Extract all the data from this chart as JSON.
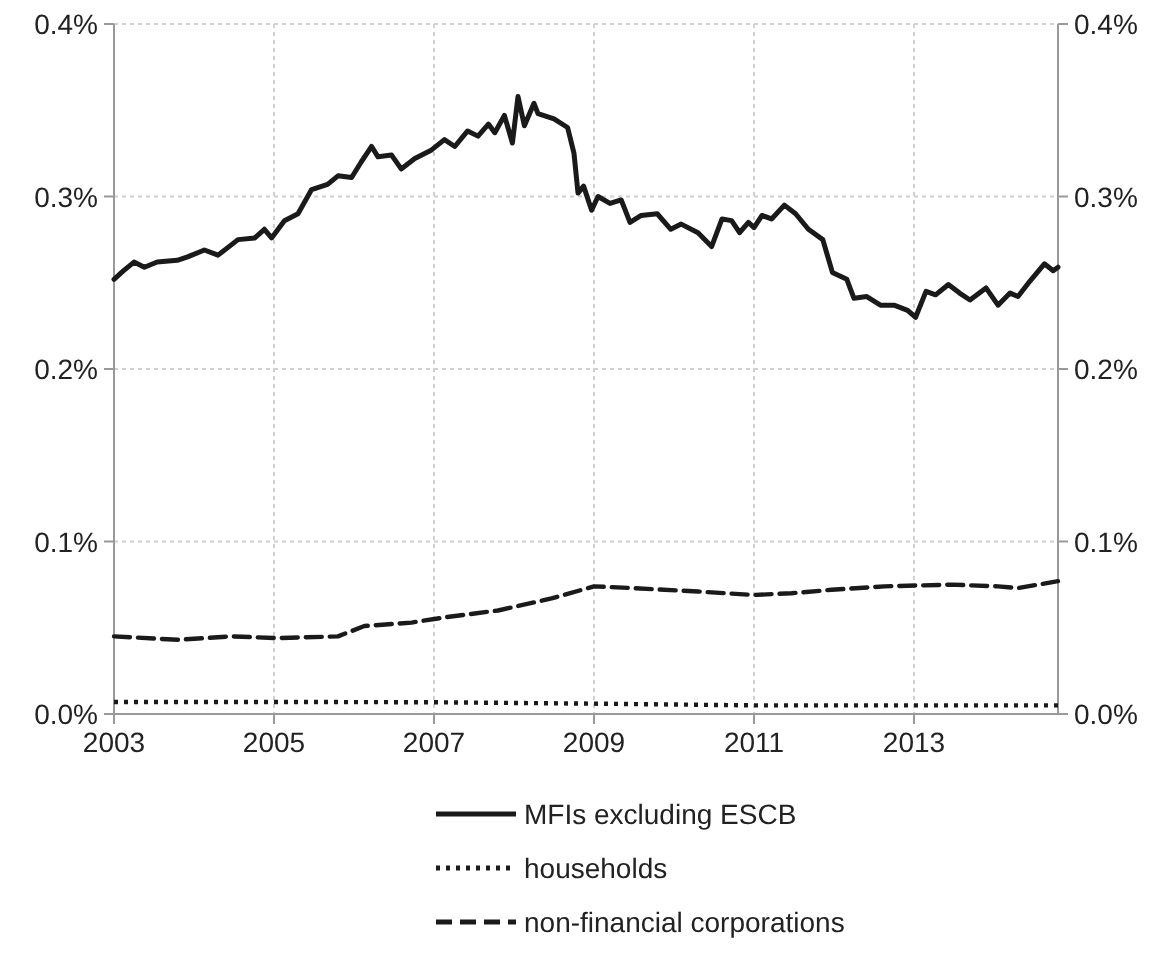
{
  "chart_data": {
    "type": "line",
    "xlim": [
      2003,
      2014.8
    ],
    "xticks": [
      2003,
      2005,
      2007,
      2009,
      2011,
      2013
    ],
    "ylim": [
      0,
      0.4
    ],
    "yticks": [
      {
        "value": 0,
        "label": "0.0%"
      },
      {
        "value": 0.1,
        "label": "0.1%"
      },
      {
        "value": 0.2,
        "label": "0.2%"
      },
      {
        "value": 0.3,
        "label": "0.3%"
      },
      {
        "value": 0.4,
        "label": "0.4%"
      }
    ],
    "y2lim": [
      0,
      0.4
    ],
    "y2ticks": [
      {
        "value": 0,
        "label": "0.0%"
      },
      {
        "value": 0.1,
        "label": "0.1%"
      },
      {
        "value": 0.2,
        "label": "0.2%"
      },
      {
        "value": 0.3,
        "label": "0.3%"
      },
      {
        "value": 0.4,
        "label": "0.4%"
      }
    ],
    "grid": true,
    "legend": "bottom",
    "marker": "none",
    "series": [
      {
        "name": "MFIs excluding ESCB",
        "color": "#1a1a1a",
        "line_style": "solid",
        "x": [
          2003,
          2003.12,
          2003.25,
          2003.38,
          2003.54,
          2003.79,
          2003.92,
          2004.13,
          2004.3,
          2004.55,
          2004.76,
          2004.88,
          2004.97,
          2005.13,
          2005.3,
          2005.47,
          2005.67,
          2005.8,
          2005.97,
          2006.09,
          2006.22,
          2006.3,
          2006.47,
          2006.59,
          2006.76,
          2006.97,
          2007.13,
          2007.26,
          2007.42,
          2007.55,
          2007.68,
          2007.76,
          2007.88,
          2007.98,
          2008.05,
          2008.13,
          2008.25,
          2008.3,
          2008.5,
          2008.67,
          2008.75,
          2008.8,
          2008.87,
          2008.97,
          2009.05,
          2009.2,
          2009.34,
          2009.45,
          2009.59,
          2009.79,
          2009.96,
          2010.09,
          2010.3,
          2010.47,
          2010.6,
          2010.72,
          2010.82,
          2010.93,
          2011,
          2011.1,
          2011.22,
          2011.38,
          2011.52,
          2011.68,
          2011.86,
          2011.98,
          2012.16,
          2012.25,
          2012.41,
          2012.58,
          2012.75,
          2012.92,
          2013.02,
          2013.15,
          2013.27,
          2013.43,
          2013.57,
          2013.7,
          2013.9,
          2014.05,
          2014.2,
          2014.3,
          2014.45,
          2014.63,
          2014.74,
          2014.8
        ],
        "values": [
          0.252,
          0.257,
          0.262,
          0.259,
          0.262,
          0.263,
          0.265,
          0.269,
          0.266,
          0.275,
          0.276,
          0.281,
          0.276,
          0.286,
          0.29,
          0.304,
          0.307,
          0.312,
          0.311,
          0.32,
          0.329,
          0.323,
          0.324,
          0.316,
          0.322,
          0.327,
          0.333,
          0.329,
          0.338,
          0.335,
          0.342,
          0.337,
          0.347,
          0.331,
          0.358,
          0.341,
          0.354,
          0.348,
          0.345,
          0.34,
          0.325,
          0.302,
          0.306,
          0.292,
          0.3,
          0.296,
          0.298,
          0.285,
          0.289,
          0.29,
          0.281,
          0.284,
          0.279,
          0.271,
          0.287,
          0.286,
          0.279,
          0.285,
          0.282,
          0.289,
          0.287,
          0.295,
          0.29,
          0.281,
          0.275,
          0.256,
          0.252,
          0.241,
          0.242,
          0.237,
          0.237,
          0.234,
          0.23,
          0.245,
          0.243,
          0.249,
          0.244,
          0.24,
          0.247,
          0.237,
          0.244,
          0.242,
          0.251,
          0.261,
          0.257,
          0.259
        ]
      },
      {
        "name": "households",
        "color": "#1a1a1a",
        "line_style": "dotted",
        "x": [
          2003,
          2005,
          2007,
          2009,
          2011,
          2013,
          2014.8
        ],
        "values": [
          0.007,
          0.007,
          0.0068,
          0.006,
          0.005,
          0.005,
          0.005
        ]
      },
      {
        "name": "non-financial corporations",
        "color": "#1a1a1a",
        "line_style": "dashed",
        "x": [
          2003,
          2003.8,
          2004.47,
          2005.05,
          2005.8,
          2006.13,
          2006.72,
          2007.13,
          2007.8,
          2008.47,
          2009,
          2009.47,
          2010.3,
          2011,
          2011.47,
          2011.97,
          2012.63,
          2013.47,
          2014.05,
          2014.3,
          2014.8
        ],
        "values": [
          0.045,
          0.043,
          0.045,
          0.044,
          0.045,
          0.051,
          0.053,
          0.056,
          0.06,
          0.067,
          0.074,
          0.073,
          0.071,
          0.069,
          0.07,
          0.072,
          0.074,
          0.075,
          0.074,
          0.073,
          0.077
        ]
      }
    ]
  }
}
